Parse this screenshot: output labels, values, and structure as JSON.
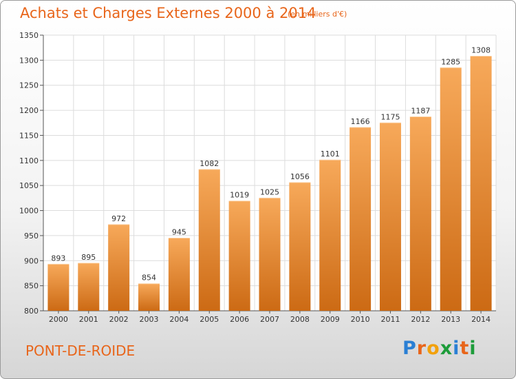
{
  "chart_data": {
    "type": "bar",
    "title": "Achats et Charges Externes 2000 à 2014",
    "subtitle": "(en milliers d'€)",
    "categories": [
      "2000",
      "2001",
      "2002",
      "2003",
      "2004",
      "2005",
      "2006",
      "2007",
      "2008",
      "2009",
      "2010",
      "2011",
      "2012",
      "2013",
      "2014"
    ],
    "values": [
      893,
      895,
      972,
      854,
      945,
      1082,
      1019,
      1025,
      1056,
      1101,
      1166,
      1175,
      1187,
      1285,
      1308
    ],
    "ylim": [
      800,
      1350
    ],
    "yticks": [
      800,
      850,
      900,
      950,
      1000,
      1050,
      1100,
      1150,
      1200,
      1250,
      1300,
      1350
    ],
    "grid": true,
    "bar_color": "#f0822a"
  },
  "footer": {
    "city": "PONT-DE-ROIDE",
    "logo_letters": [
      "P",
      "r",
      "o",
      "x",
      "i",
      "t",
      "i"
    ]
  },
  "colors": {
    "accent": "#e8651a",
    "logo": [
      "#2a7fd4",
      "#e8651a",
      "#f2a10c",
      "#1d9c3a",
      "#2a7fd4",
      "#e8651a",
      "#1d9c3a"
    ]
  }
}
